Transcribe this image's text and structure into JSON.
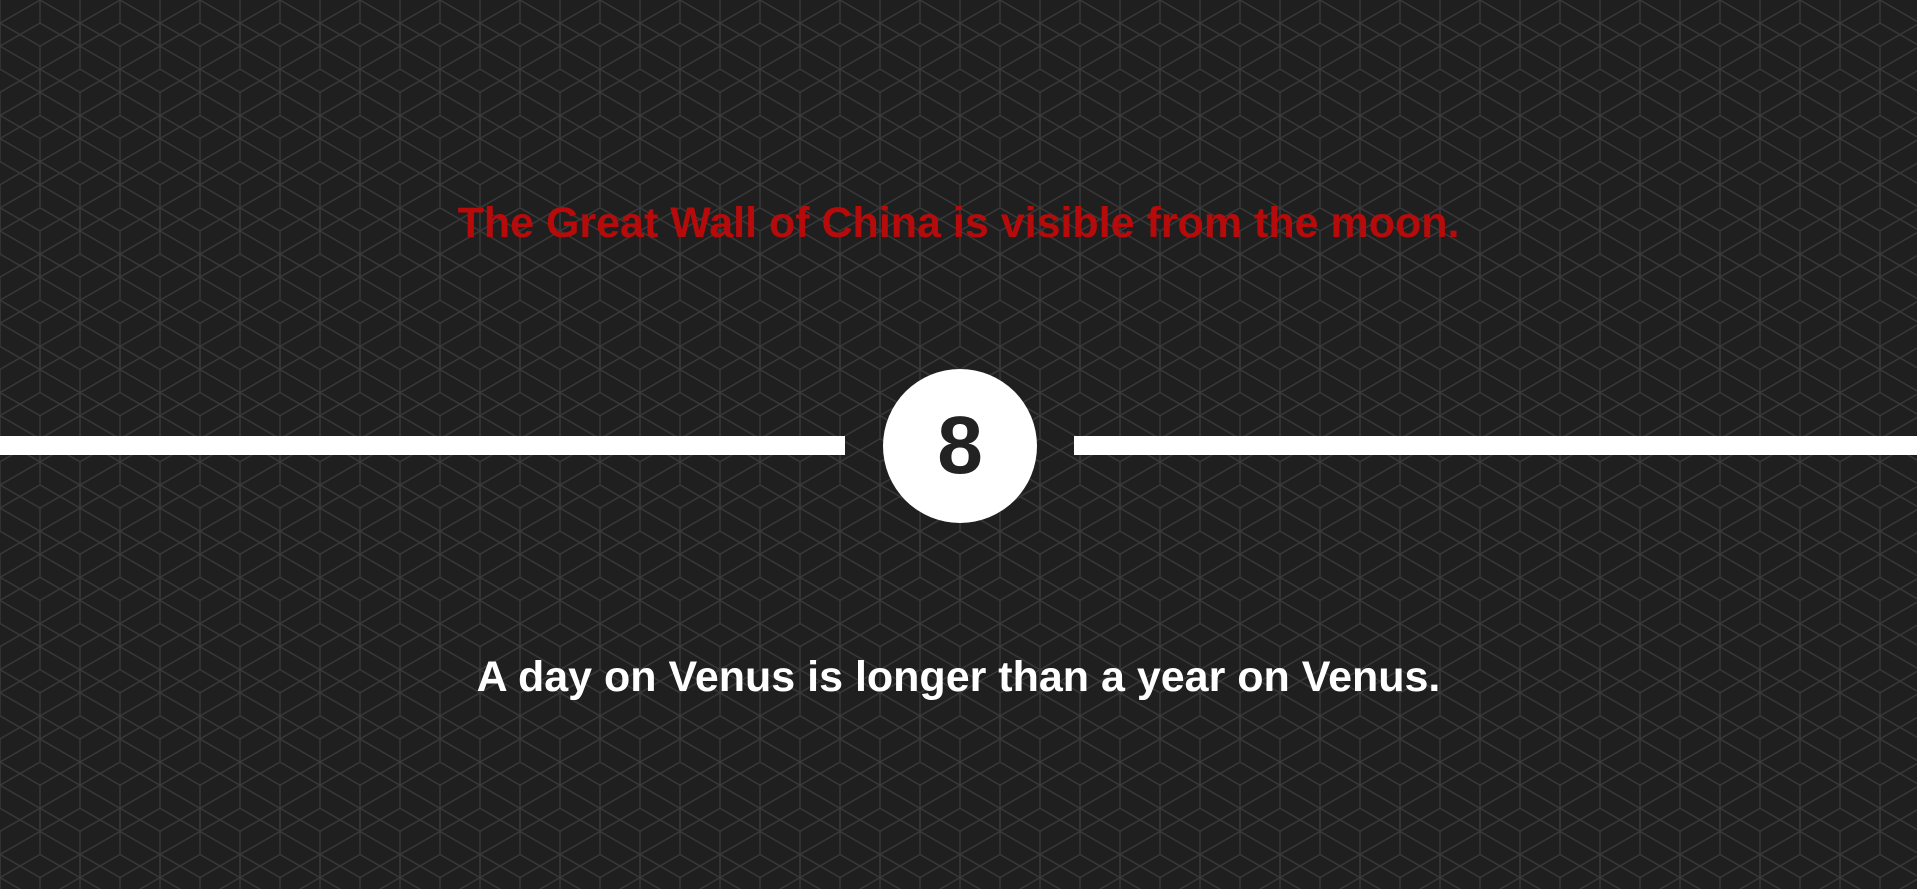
{
  "statements": {
    "top": "The Great Wall of China is visible from the moon.",
    "bottom": "A day on Venus is longer than a year on Venus."
  },
  "counter": {
    "value": "8"
  },
  "colors": {
    "background": "#1f1f1f",
    "pattern_line": "#3a3a3a",
    "top_statement": "#b70b0b",
    "bottom_statement": "#ffffff",
    "divider": "#ffffff",
    "badge_fill": "#ffffff",
    "badge_text": "#222222"
  }
}
